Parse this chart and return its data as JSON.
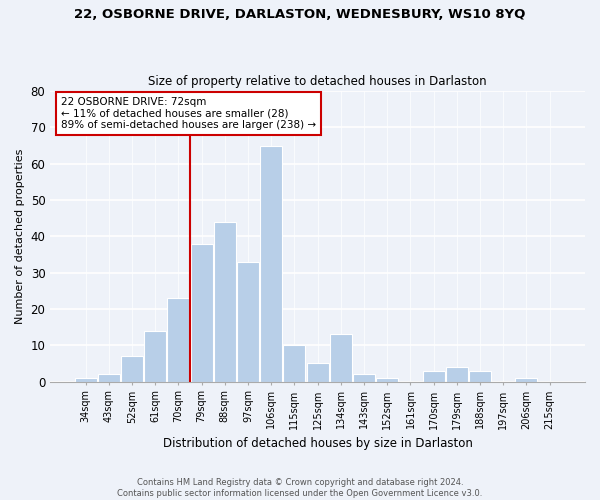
{
  "title": "22, OSBORNE DRIVE, DARLASTON, WEDNESBURY, WS10 8YQ",
  "subtitle": "Size of property relative to detached houses in Darlaston",
  "xlabel": "Distribution of detached houses by size in Darlaston",
  "ylabel": "Number of detached properties",
  "bar_color": "#b8cfe8",
  "categories": [
    "34sqm",
    "43sqm",
    "52sqm",
    "61sqm",
    "70sqm",
    "79sqm",
    "88sqm",
    "97sqm",
    "106sqm",
    "115sqm",
    "125sqm",
    "134sqm",
    "143sqm",
    "152sqm",
    "161sqm",
    "170sqm",
    "179sqm",
    "188sqm",
    "197sqm",
    "206sqm",
    "215sqm"
  ],
  "values": [
    1,
    2,
    7,
    14,
    23,
    38,
    44,
    33,
    65,
    10,
    5,
    13,
    2,
    1,
    0,
    3,
    4,
    3,
    0,
    1,
    0
  ],
  "ylim": [
    0,
    80
  ],
  "yticks": [
    0,
    10,
    20,
    30,
    40,
    50,
    60,
    70,
    80
  ],
  "vline_x": 4.5,
  "vline_color": "#cc0000",
  "annotation_line1": "22 OSBORNE DRIVE: 72sqm",
  "annotation_line2": "← 11% of detached houses are smaller (28)",
  "annotation_line3": "89% of semi-detached houses are larger (238) →",
  "annotation_box_color": "#ffffff",
  "annotation_box_edge": "#cc0000",
  "footer_line1": "Contains HM Land Registry data © Crown copyright and database right 2024.",
  "footer_line2": "Contains public sector information licensed under the Open Government Licence v3.0.",
  "background_color": "#eef2f9",
  "grid_color": "#ffffff"
}
